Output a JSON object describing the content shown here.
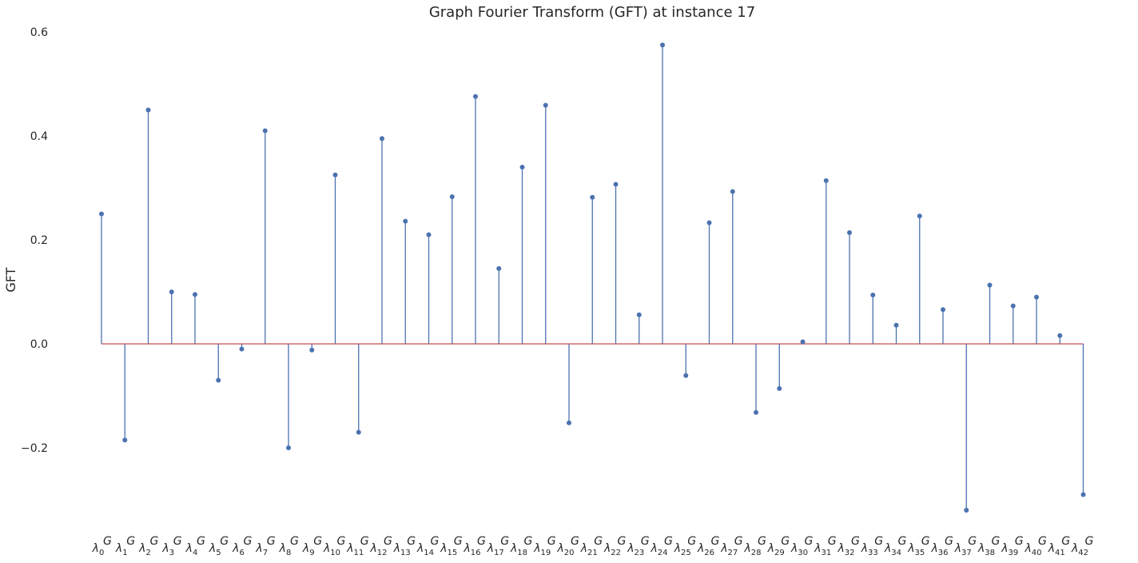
{
  "chart_data": {
    "type": "stem",
    "title": "Graph Fourier Transform (GFT) at instance 17",
    "ylabel": "GFT",
    "xlabel": "",
    "ylim": [
      -0.36,
      0.6
    ],
    "yticks": [
      -0.2,
      0.0,
      0.2,
      0.4,
      0.6
    ],
    "ytick_labels": [
      "−0.2",
      "0.0",
      "0.2",
      "0.4",
      "0.6"
    ],
    "x_label_symbol": "λ",
    "x_label_superscript": "G",
    "categories": [
      "0",
      "1",
      "2",
      "3",
      "4",
      "5",
      "6",
      "7",
      "8",
      "9",
      "10",
      "11",
      "12",
      "13",
      "14",
      "15",
      "16",
      "17",
      "18",
      "19",
      "20",
      "21",
      "22",
      "23",
      "24",
      "25",
      "26",
      "27",
      "28",
      "29",
      "30",
      "31",
      "32",
      "33",
      "34",
      "35",
      "36",
      "37",
      "38",
      "39",
      "40",
      "41",
      "42"
    ],
    "values": [
      0.25,
      -0.185,
      0.45,
      0.1,
      0.095,
      -0.07,
      -0.01,
      0.41,
      -0.2,
      -0.012,
      0.325,
      -0.17,
      0.395,
      0.236,
      0.21,
      0.283,
      0.476,
      0.145,
      0.34,
      0.459,
      -0.152,
      0.282,
      0.307,
      0.056,
      0.575,
      -0.061,
      0.233,
      0.293,
      -0.132,
      -0.086,
      0.004,
      0.314,
      0.214,
      0.094,
      0.036,
      0.246,
      0.066,
      -0.32,
      0.113,
      0.073,
      0.09,
      0.016,
      -0.29
    ],
    "colors": {
      "stem": "#4c72b0",
      "baseline": "#c44e52",
      "text": "#262626"
    },
    "grid": false
  }
}
